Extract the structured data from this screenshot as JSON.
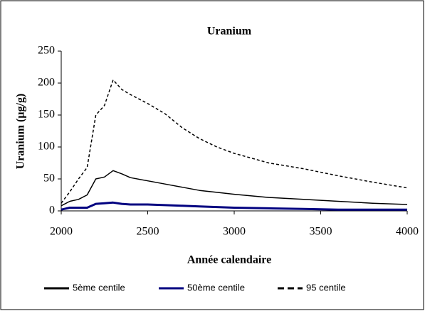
{
  "chart_data": {
    "type": "line",
    "title": "Uranium",
    "x_label": "Année calendaire",
    "y_label": "Uranium (µg/g)",
    "x": [
      2000,
      2050,
      2100,
      2150,
      2200,
      2250,
      2300,
      2350,
      2400,
      2500,
      2600,
      2700,
      2800,
      2900,
      3000,
      3200,
      3400,
      3600,
      3800,
      4000
    ],
    "series": [
      {
        "name": "5ème centile",
        "color": "#000000",
        "style": "solid",
        "values": [
          8,
          15,
          18,
          25,
          50,
          53,
          63,
          58,
          52,
          47,
          42,
          37,
          32,
          29,
          26,
          21,
          18,
          15,
          12,
          10
        ]
      },
      {
        "name": "50ème centile",
        "color": "#000080",
        "style": "solid",
        "values": [
          2,
          5,
          5,
          5,
          11,
          12,
          13,
          11,
          10,
          10,
          9,
          8,
          7,
          6,
          5,
          4,
          3,
          2,
          2,
          2
        ]
      },
      {
        "name": "95 centile",
        "color": "#000000",
        "style": "dashed",
        "values": [
          12,
          30,
          50,
          68,
          150,
          165,
          205,
          190,
          182,
          168,
          152,
          130,
          113,
          100,
          90,
          75,
          66,
          55,
          45,
          36
        ]
      }
    ],
    "xlim": [
      2000,
      4000
    ],
    "xticks": [
      2000,
      2500,
      3000,
      3500,
      4000
    ],
    "ylim": [
      0,
      250
    ],
    "yticks": [
      0,
      50,
      100,
      150,
      200,
      250
    ],
    "grid": false,
    "legend": "bottom"
  }
}
